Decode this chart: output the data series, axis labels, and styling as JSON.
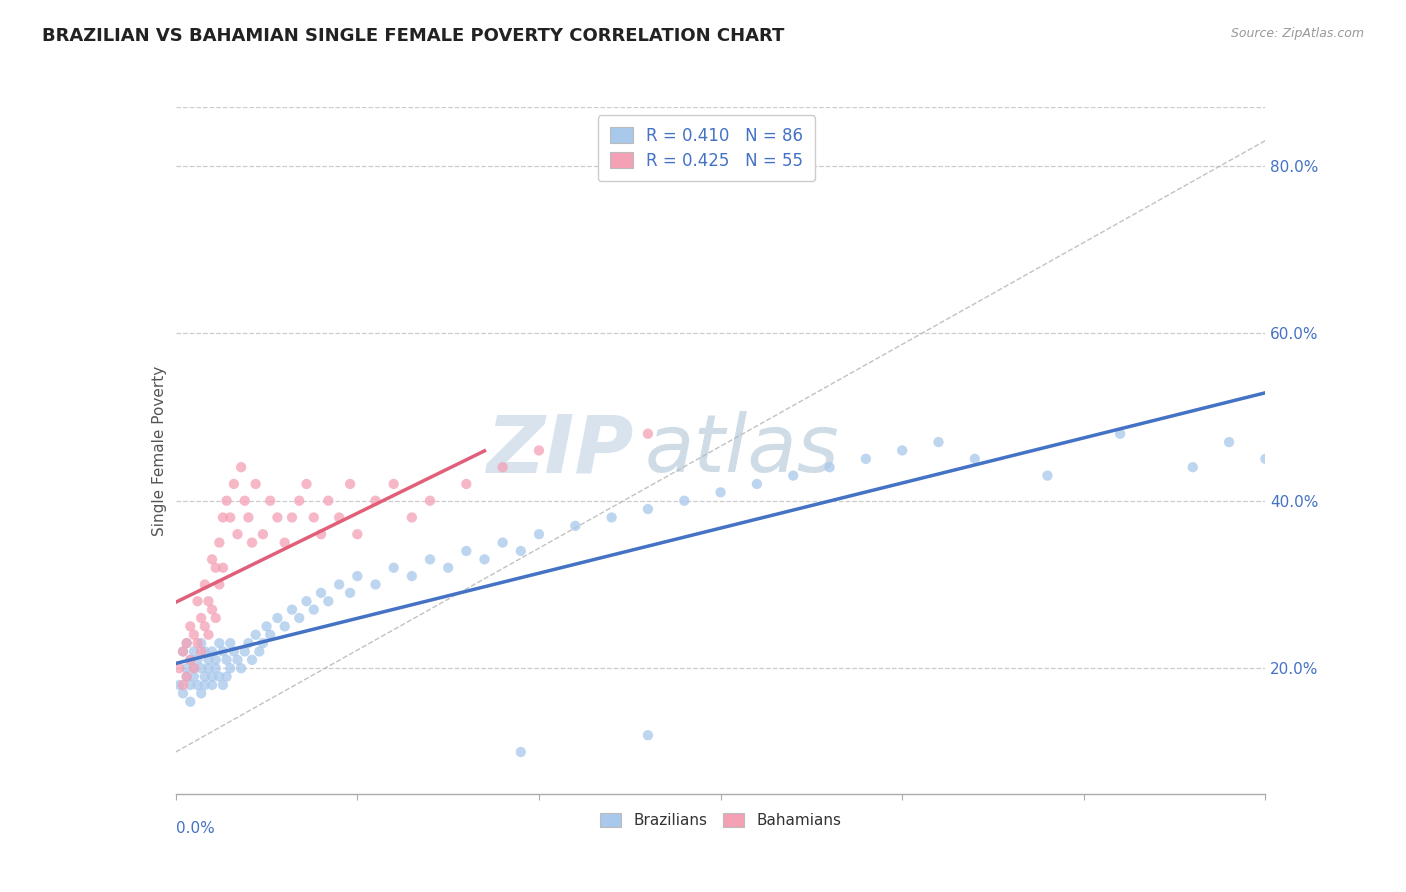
{
  "title": "BRAZILIAN VS BAHAMIAN SINGLE FEMALE POVERTY CORRELATION CHART",
  "source": "Source: ZipAtlas.com",
  "ylabel": "Single Female Poverty",
  "y_label_right_ticks": [
    "20.0%",
    "40.0%",
    "60.0%",
    "80.0%"
  ],
  "y_label_right_vals": [
    0.2,
    0.4,
    0.6,
    0.8
  ],
  "xlim": [
    0.0,
    0.3
  ],
  "ylim": [
    0.05,
    0.87
  ],
  "brazil_color": "#A8C8EC",
  "bahama_color": "#F4A0B5",
  "brazil_line_color": "#4472C4",
  "bahama_line_color": "#E0607A",
  "watermark_zip": "ZIP",
  "watermark_atlas": "atlas",
  "brazil_scatter_x": [
    0.001,
    0.002,
    0.002,
    0.003,
    0.003,
    0.003,
    0.004,
    0.004,
    0.004,
    0.005,
    0.005,
    0.005,
    0.006,
    0.006,
    0.007,
    0.007,
    0.007,
    0.008,
    0.008,
    0.008,
    0.009,
    0.009,
    0.01,
    0.01,
    0.01,
    0.011,
    0.011,
    0.012,
    0.012,
    0.013,
    0.013,
    0.014,
    0.014,
    0.015,
    0.015,
    0.016,
    0.017,
    0.018,
    0.019,
    0.02,
    0.021,
    0.022,
    0.023,
    0.024,
    0.025,
    0.026,
    0.028,
    0.03,
    0.032,
    0.034,
    0.036,
    0.038,
    0.04,
    0.042,
    0.045,
    0.048,
    0.05,
    0.055,
    0.06,
    0.065,
    0.07,
    0.075,
    0.08,
    0.085,
    0.09,
    0.095,
    0.1,
    0.11,
    0.12,
    0.13,
    0.14,
    0.15,
    0.16,
    0.17,
    0.18,
    0.19,
    0.2,
    0.21,
    0.22,
    0.24,
    0.26,
    0.28,
    0.29,
    0.3,
    0.095,
    0.13
  ],
  "brazil_scatter_y": [
    0.18,
    0.22,
    0.17,
    0.2,
    0.19,
    0.23,
    0.18,
    0.21,
    0.16,
    0.2,
    0.19,
    0.22,
    0.18,
    0.21,
    0.2,
    0.17,
    0.23,
    0.19,
    0.22,
    0.18,
    0.21,
    0.2,
    0.19,
    0.22,
    0.18,
    0.21,
    0.2,
    0.19,
    0.23,
    0.18,
    0.22,
    0.21,
    0.19,
    0.2,
    0.23,
    0.22,
    0.21,
    0.2,
    0.22,
    0.23,
    0.21,
    0.24,
    0.22,
    0.23,
    0.25,
    0.24,
    0.26,
    0.25,
    0.27,
    0.26,
    0.28,
    0.27,
    0.29,
    0.28,
    0.3,
    0.29,
    0.31,
    0.3,
    0.32,
    0.31,
    0.33,
    0.32,
    0.34,
    0.33,
    0.35,
    0.34,
    0.36,
    0.37,
    0.38,
    0.39,
    0.4,
    0.41,
    0.42,
    0.43,
    0.44,
    0.45,
    0.46,
    0.47,
    0.45,
    0.43,
    0.48,
    0.44,
    0.47,
    0.45,
    0.1,
    0.12
  ],
  "bahama_scatter_x": [
    0.001,
    0.002,
    0.002,
    0.003,
    0.003,
    0.004,
    0.004,
    0.005,
    0.005,
    0.006,
    0.006,
    0.007,
    0.007,
    0.008,
    0.008,
    0.009,
    0.009,
    0.01,
    0.01,
    0.011,
    0.011,
    0.012,
    0.012,
    0.013,
    0.013,
    0.014,
    0.015,
    0.016,
    0.017,
    0.018,
    0.019,
    0.02,
    0.021,
    0.022,
    0.024,
    0.026,
    0.028,
    0.03,
    0.032,
    0.034,
    0.036,
    0.038,
    0.04,
    0.042,
    0.045,
    0.048,
    0.05,
    0.055,
    0.06,
    0.065,
    0.07,
    0.08,
    0.09,
    0.1,
    0.13
  ],
  "bahama_scatter_y": [
    0.2,
    0.22,
    0.18,
    0.23,
    0.19,
    0.25,
    0.21,
    0.24,
    0.2,
    0.28,
    0.23,
    0.26,
    0.22,
    0.3,
    0.25,
    0.28,
    0.24,
    0.33,
    0.27,
    0.32,
    0.26,
    0.35,
    0.3,
    0.38,
    0.32,
    0.4,
    0.38,
    0.42,
    0.36,
    0.44,
    0.4,
    0.38,
    0.35,
    0.42,
    0.36,
    0.4,
    0.38,
    0.35,
    0.38,
    0.4,
    0.42,
    0.38,
    0.36,
    0.4,
    0.38,
    0.42,
    0.36,
    0.4,
    0.42,
    0.38,
    0.4,
    0.42,
    0.44,
    0.46,
    0.48
  ],
  "diag_line_x": [
    0.0,
    0.3
  ],
  "diag_line_y": [
    0.1,
    0.83
  ]
}
